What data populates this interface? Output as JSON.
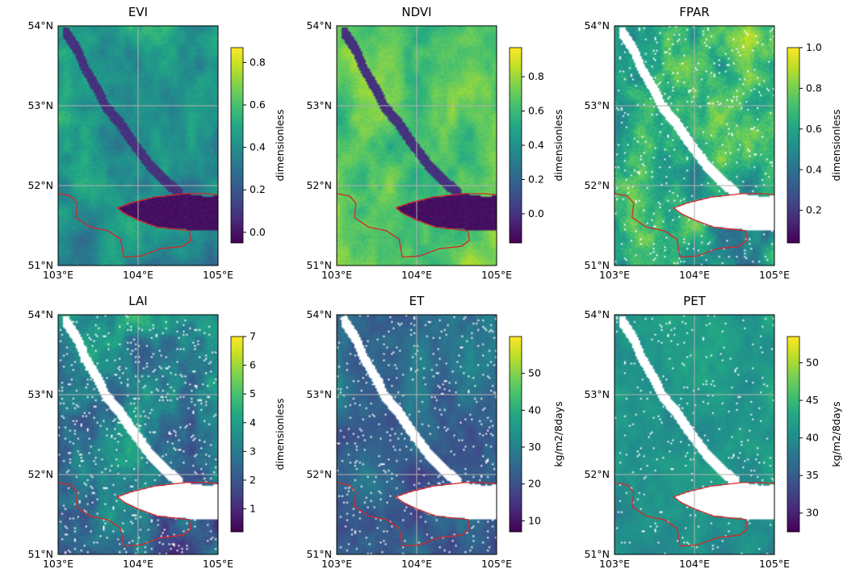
{
  "chart_data": [
    {
      "type": "heatmap",
      "title": "EVI",
      "xticks": [
        "103°E",
        "104°E",
        "105°E"
      ],
      "yticks": [
        "51°N",
        "52°N",
        "53°N",
        "54°N"
      ],
      "xlim": [
        103,
        105
      ],
      "ylim": [
        51,
        54
      ],
      "colorbar": {
        "label": "dimensionless",
        "min": -0.05,
        "max": 0.87,
        "ticks": [
          {
            "value": 0.0,
            "label": "0.0"
          },
          {
            "value": 0.2,
            "label": "0.2"
          },
          {
            "value": 0.4,
            "label": "0.4"
          },
          {
            "value": 0.6,
            "label": "0.6"
          },
          {
            "value": 0.8,
            "label": "0.8"
          }
        ]
      }
    },
    {
      "type": "heatmap",
      "title": "NDVI",
      "xticks": [
        "103°E",
        "104°E",
        "105°E"
      ],
      "yticks": [
        "51°N",
        "52°N",
        "53°N",
        "54°N"
      ],
      "xlim": [
        103,
        105
      ],
      "ylim": [
        51,
        54
      ],
      "colorbar": {
        "label": "dimensionless",
        "min": -0.17,
        "max": 0.97,
        "ticks": [
          {
            "value": 0.0,
            "label": "0.0"
          },
          {
            "value": 0.2,
            "label": "0.2"
          },
          {
            "value": 0.4,
            "label": "0.4"
          },
          {
            "value": 0.6,
            "label": "0.6"
          },
          {
            "value": 0.8,
            "label": "0.8"
          }
        ]
      }
    },
    {
      "type": "heatmap",
      "title": "FPAR",
      "xticks": [
        "103°E",
        "104°E",
        "105°E"
      ],
      "yticks": [
        "51°N",
        "52°N",
        "53°N",
        "54°N"
      ],
      "xlim": [
        103,
        105
      ],
      "ylim": [
        51,
        54
      ],
      "colorbar": {
        "label": "dimensionless",
        "min": 0.04,
        "max": 1.0,
        "ticks": [
          {
            "value": 0.2,
            "label": "0.2"
          },
          {
            "value": 0.4,
            "label": "0.4"
          },
          {
            "value": 0.6,
            "label": "0.6"
          },
          {
            "value": 0.8,
            "label": "0.8"
          },
          {
            "value": 1.0,
            "label": "1.0"
          }
        ]
      }
    },
    {
      "type": "heatmap",
      "title": "LAI",
      "xticks": [
        "103°E",
        "104°E",
        "105°E"
      ],
      "yticks": [
        "51°N",
        "52°N",
        "53°N",
        "54°N"
      ],
      "xlim": [
        103,
        105
      ],
      "ylim": [
        51,
        54
      ],
      "colorbar": {
        "label": "dimensionless",
        "min": 0.2,
        "max": 7.0,
        "ticks": [
          {
            "value": 1,
            "label": "1"
          },
          {
            "value": 2,
            "label": "2"
          },
          {
            "value": 3,
            "label": "3"
          },
          {
            "value": 4,
            "label": "4"
          },
          {
            "value": 5,
            "label": "5"
          },
          {
            "value": 6,
            "label": "6"
          },
          {
            "value": 7,
            "label": "7"
          }
        ]
      }
    },
    {
      "type": "heatmap",
      "title": "ET",
      "xticks": [
        "103°E",
        "104°E",
        "105°E"
      ],
      "yticks": [
        "51°N",
        "52°N",
        "53°N",
        "54°N"
      ],
      "xlim": [
        103,
        105
      ],
      "ylim": [
        51,
        54
      ],
      "colorbar": {
        "label": "kg/m2/8days",
        "min": 7,
        "max": 60,
        "ticks": [
          {
            "value": 10,
            "label": "10"
          },
          {
            "value": 20,
            "label": "20"
          },
          {
            "value": 30,
            "label": "30"
          },
          {
            "value": 40,
            "label": "40"
          },
          {
            "value": 50,
            "label": "50"
          }
        ]
      }
    },
    {
      "type": "heatmap",
      "title": "PET",
      "xticks": [
        "103°E",
        "104°E",
        "105°E"
      ],
      "yticks": [
        "51°N",
        "52°N",
        "53°N",
        "54°N"
      ],
      "xlim": [
        103,
        105
      ],
      "ylim": [
        51,
        54
      ],
      "colorbar": {
        "label": "kg/m2/8days",
        "min": 27.5,
        "max": 53.5,
        "ticks": [
          {
            "value": 30,
            "label": "30"
          },
          {
            "value": 35,
            "label": "35"
          },
          {
            "value": 40,
            "label": "40"
          },
          {
            "value": 45,
            "label": "45"
          },
          {
            "value": 50,
            "label": "50"
          }
        ]
      }
    }
  ],
  "colors": {
    "boundary": "#d62728",
    "grid": "#b0b0b0",
    "nodata": "#ffffff"
  },
  "colormap": "viridis"
}
